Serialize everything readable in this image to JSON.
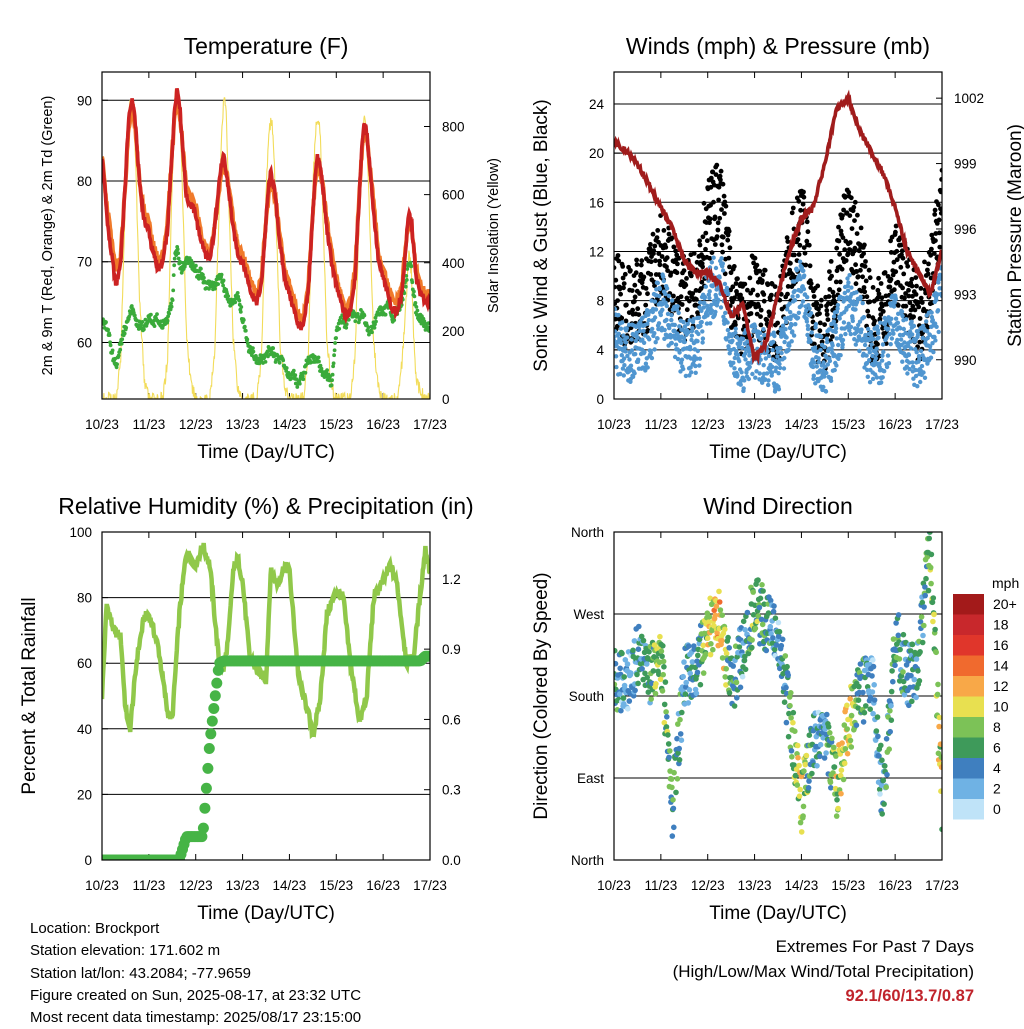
{
  "info": {
    "location": "Location: Brockport",
    "elevation": "Station elevation: 171.602 m",
    "latlon": "Station lat/lon: 43.2084; -77.9659",
    "created": "Figure created on Sun, 2025-08-17, at 23:32 UTC",
    "recent": "Most recent data timestamp: 2025/08/17 23:15:00"
  },
  "extremes": {
    "title": "Extremes For Past 7 Days",
    "subtitle": "(High/Low/Max Wind/Total Precipitation)",
    "values": "92.1/60/13.7/0.87"
  },
  "colors": {
    "temp_2m": "#cc2222",
    "temp_9m": "#f07a2a",
    "dewpoint": "#3aaa3a",
    "solar": "#f2dc5a",
    "wind": "#5096d0",
    "gust": "#000000",
    "pressure": "#a01c1c",
    "rh": "#90c84a",
    "rain": "#46b446"
  },
  "chart_data": [
    {
      "type": "line",
      "title": "Temperature (F)",
      "xlabel": "Time (Day/UTC)",
      "ylabel": "2m & 9m T (Red, Orange) & 2m Td (Green)",
      "y2label": "Solar Insolation (Yellow)",
      "xticks": [
        "10/23",
        "11/23",
        "12/23",
        "13/23",
        "14/23",
        "15/23",
        "16/23",
        "17/23"
      ],
      "yticks": [
        60,
        70,
        80,
        90
      ],
      "y2ticks": [
        0,
        200,
        400,
        600,
        800
      ],
      "ylim": [
        53,
        93.5
      ],
      "y2lim": [
        0,
        960
      ],
      "x": [
        0,
        0.05,
        0.1,
        0.15,
        0.2,
        0.3,
        0.4,
        0.5,
        0.55,
        0.6,
        0.65,
        0.7,
        0.8,
        0.9,
        1.0,
        1.05,
        1.1,
        1.15,
        1.2,
        1.3,
        1.4,
        1.5,
        1.55,
        1.6,
        1.65,
        1.7,
        1.8,
        1.9,
        2.0,
        2.05,
        2.1,
        2.15,
        2.2,
        2.3,
        2.4,
        2.5,
        2.55,
        2.6,
        2.65,
        2.7,
        2.8,
        2.9,
        3.0,
        3.05,
        3.1,
        3.15,
        3.2,
        3.3,
        3.4,
        3.5,
        3.55,
        3.6,
        3.65,
        3.7,
        3.8,
        3.9,
        4.0,
        4.05,
        4.1,
        4.15,
        4.2,
        4.3,
        4.4,
        4.5,
        4.55,
        4.6,
        4.65,
        4.7,
        4.8,
        4.9,
        5.0,
        5.05,
        5.1,
        5.15,
        5.2,
        5.3,
        5.4,
        5.5,
        5.55,
        5.6,
        5.65,
        5.7,
        5.8,
        5.9,
        6.0,
        6.05,
        6.1,
        6.15,
        6.2,
        6.3,
        6.4,
        6.5,
        6.55,
        6.6,
        6.65,
        6.7,
        6.8,
        6.9,
        7.0
      ],
      "series": [
        {
          "name": "2m T",
          "values": [
            83,
            80,
            76,
            73,
            71,
            67,
            70,
            80,
            86,
            89,
            90,
            88,
            80,
            75,
            74,
            72,
            71,
            70,
            69,
            70,
            74,
            84,
            89,
            91.5,
            90,
            86,
            78,
            77,
            76,
            74,
            73,
            72,
            71,
            70,
            74,
            80,
            82,
            83,
            81,
            79,
            74,
            71,
            70,
            69,
            68,
            67,
            66,
            65,
            67,
            75,
            79,
            81,
            80,
            78,
            72,
            68,
            66,
            65,
            64,
            63,
            62,
            62,
            66,
            76,
            81,
            83,
            82,
            80,
            74,
            70,
            67,
            66,
            65,
            64,
            63,
            64,
            68,
            79,
            85,
            87,
            86,
            83,
            76,
            70,
            68,
            67,
            66,
            65,
            64,
            64,
            66,
            73,
            76,
            75,
            72,
            68,
            66,
            65,
            65
          ]
        },
        {
          "name": "9m T",
          "values": [
            83,
            80,
            77,
            75,
            73,
            69,
            71,
            80,
            85,
            88,
            89,
            87,
            80,
            76,
            75,
            73,
            72,
            71,
            70,
            71,
            75,
            84,
            88,
            91,
            89,
            86,
            79,
            78,
            77,
            75,
            74,
            73,
            72,
            71,
            74,
            79,
            81,
            82,
            81,
            80,
            75,
            72,
            71,
            70,
            69,
            68,
            67,
            66,
            68,
            75,
            78,
            80,
            79,
            78,
            73,
            69,
            67,
            66,
            65,
            64,
            63,
            63,
            67,
            76,
            80,
            82,
            81,
            80,
            75,
            71,
            68,
            67,
            66,
            65,
            64,
            65,
            69,
            79,
            84,
            86,
            85,
            83,
            77,
            71,
            69,
            68,
            67,
            66,
            65,
            65,
            67,
            73,
            75,
            75,
            72,
            69,
            67,
            66,
            66
          ]
        },
        {
          "name": "2m Td",
          "values": [
            63,
            62,
            62,
            61,
            59,
            57,
            60,
            62,
            63,
            64,
            64,
            63,
            62,
            62,
            63,
            63,
            62,
            63,
            63,
            62,
            63,
            65,
            70,
            72,
            70,
            69,
            70,
            70,
            69,
            68,
            69,
            68,
            67,
            67,
            67,
            68,
            68,
            67,
            66,
            65,
            65,
            66,
            63,
            62,
            60,
            59,
            59,
            58,
            58,
            58,
            59,
            59,
            59,
            58,
            58,
            57,
            56,
            56,
            56,
            55,
            55,
            56,
            58,
            58,
            58,
            58,
            57,
            56,
            56,
            55,
            61,
            62,
            63,
            63,
            62,
            64,
            63,
            63,
            64,
            63,
            62,
            61,
            62,
            64,
            64,
            64,
            65,
            64,
            63,
            64,
            65,
            68,
            70,
            69,
            66,
            64,
            63,
            62,
            62
          ]
        },
        {
          "name": "Solar Insolation",
          "values": [
            0,
            0,
            0,
            0,
            0,
            0,
            120,
            600,
            800,
            880,
            860,
            780,
            300,
            60,
            0,
            0,
            0,
            0,
            0,
            0,
            120,
            650,
            830,
            900,
            880,
            700,
            200,
            40,
            0,
            0,
            0,
            0,
            0,
            0,
            120,
            560,
            760,
            880,
            860,
            600,
            180,
            30,
            0,
            0,
            0,
            0,
            0,
            0,
            110,
            600,
            750,
            820,
            790,
            600,
            170,
            30,
            0,
            0,
            0,
            0,
            0,
            0,
            120,
            620,
            770,
            830,
            800,
            600,
            170,
            30,
            0,
            0,
            0,
            0,
            0,
            0,
            120,
            600,
            760,
            820,
            780,
            580,
            160,
            30,
            0,
            0,
            0,
            0,
            0,
            0,
            100,
            300,
            420,
            380,
            180,
            60,
            20,
            0,
            0
          ]
        }
      ]
    },
    {
      "type": "scatter",
      "title": "Winds (mph) & Pressure (mb)",
      "xlabel": "Time (Day/UTC)",
      "ylabel": "Sonic Wind & Gust (Blue, Black)",
      "y2label": "Station Pressure (Maroon)",
      "xticks": [
        "10/23",
        "11/23",
        "12/23",
        "13/23",
        "14/23",
        "15/23",
        "16/23",
        "17/23"
      ],
      "yticks": [
        0,
        4,
        8,
        12,
        16,
        20,
        24
      ],
      "y2ticks": [
        990,
        993,
        996,
        999,
        1002
      ],
      "ylim": [
        0,
        26.6
      ],
      "y2lim": [
        988.2,
        1003.2
      ],
      "x": [
        0,
        0.25,
        0.5,
        0.75,
        1.0,
        1.25,
        1.5,
        1.75,
        2.0,
        2.25,
        2.5,
        2.75,
        3.0,
        3.25,
        3.5,
        3.75,
        4.0,
        4.25,
        4.5,
        4.75,
        5.0,
        5.25,
        5.5,
        5.75,
        6.0,
        6.25,
        6.5,
        6.75,
        7.0
      ],
      "series": [
        {
          "name": "Sonic Wind",
          "values": [
            5,
            3.5,
            4,
            5,
            8,
            6,
            4,
            4,
            8,
            10,
            5,
            3,
            4,
            3,
            3,
            6,
            10,
            4,
            2.5,
            5,
            8,
            6,
            3,
            4,
            7,
            4.5,
            3,
            5,
            9
          ]
        },
        {
          "name": "Gust",
          "values": [
            9,
            7,
            8,
            9,
            12,
            10,
            8,
            9,
            14,
            17,
            9,
            6,
            9,
            7,
            6,
            11,
            15,
            7,
            5,
            10,
            15,
            11,
            6,
            7,
            11,
            9,
            6,
            10,
            16
          ]
        },
        {
          "name": "Station Pressure",
          "values": [
            1000,
            999.6,
            999,
            998,
            997,
            996,
            994.5,
            994,
            994,
            993.5,
            992,
            992.5,
            990,
            990.8,
            993,
            995,
            996.5,
            997,
            999,
            1001.5,
            1002,
            1000.5,
            999.5,
            998.5,
            997,
            995,
            994,
            993,
            995
          ]
        }
      ]
    },
    {
      "type": "line",
      "title": "Relative Humidity (%) & Precipitation (in)",
      "xlabel": "Time (Day/UTC)",
      "ylabel": "Percent & Total Rainfall",
      "xticks": [
        "10/23",
        "11/23",
        "12/23",
        "13/23",
        "14/23",
        "15/23",
        "16/23",
        "17/23"
      ],
      "yticks": [
        0,
        20,
        40,
        60,
        80,
        100
      ],
      "y2ticks": [
        "0.0",
        "0.3",
        "0.6",
        "0.9",
        "1.2"
      ],
      "ylim": [
        0,
        100
      ],
      "y2lim": [
        0,
        1.4
      ],
      "x": [
        0,
        0.1,
        0.25,
        0.4,
        0.5,
        0.6,
        0.75,
        0.9,
        1.0,
        1.2,
        1.4,
        1.5,
        1.65,
        1.8,
        2.0,
        2.15,
        2.3,
        2.5,
        2.6,
        2.7,
        2.8,
        2.9,
        3.0,
        3.15,
        3.3,
        3.5,
        3.6,
        3.75,
        3.9,
        4.0,
        4.2,
        4.4,
        4.5,
        4.65,
        4.8,
        5.0,
        5.15,
        5.3,
        5.5,
        5.65,
        5.8,
        6.0,
        6.15,
        6.3,
        6.5,
        6.65,
        6.8,
        6.9,
        7.0
      ],
      "series": [
        {
          "name": "Relative Humidity",
          "values": [
            50,
            78,
            70,
            68,
            46,
            40,
            62,
            74,
            75,
            65,
            45,
            43,
            75,
            94,
            90,
            96,
            90,
            60,
            58,
            68,
            88,
            92,
            85,
            62,
            58,
            55,
            88,
            84,
            90,
            88,
            55,
            45,
            38,
            48,
            75,
            82,
            80,
            60,
            42,
            50,
            80,
            85,
            90,
            84,
            60,
            62,
            82,
            95,
            88
          ]
        },
        {
          "name": "Total Rainfall",
          "values": [
            0,
            0,
            0,
            0,
            0,
            0,
            0,
            0,
            0,
            0,
            0,
            0,
            0,
            0.1,
            0.1,
            0.1,
            0.5,
            0.84,
            0.85,
            0.85,
            0.85,
            0.85,
            0.85,
            0.85,
            0.85,
            0.85,
            0.85,
            0.85,
            0.85,
            0.85,
            0.85,
            0.85,
            0.85,
            0.85,
            0.85,
            0.85,
            0.85,
            0.85,
            0.85,
            0.85,
            0.85,
            0.85,
            0.85,
            0.85,
            0.85,
            0.85,
            0.85,
            0.87,
            0.87
          ]
        }
      ]
    },
    {
      "type": "scatter",
      "title": "Wind Direction",
      "xlabel": "Time (Day/UTC)",
      "ylabel": "Direction (Colored By Speed)",
      "xticks": [
        "10/23",
        "11/23",
        "12/23",
        "13/23",
        "14/23",
        "15/23",
        "16/23",
        "17/23"
      ],
      "yticks": [
        "North",
        "East",
        "South",
        "West",
        "North"
      ],
      "ylim": [
        0,
        360
      ],
      "legend_title": "mph",
      "legend_labels": [
        "20+",
        "18",
        "16",
        "14",
        "12",
        "10",
        "8",
        "6",
        "4",
        "2",
        "0"
      ],
      "legend_colors": [
        "#a31a1a",
        "#c8282c",
        "#e0362b",
        "#f06a2e",
        "#f8a848",
        "#e8e050",
        "#7cc257",
        "#3e9a5a",
        "#3f7fbf",
        "#6fb2e4",
        "#bfe3f8"
      ],
      "x": [
        0,
        0.25,
        0.5,
        0.75,
        1.0,
        1.25,
        1.5,
        1.75,
        2.0,
        2.25,
        2.5,
        2.75,
        3.0,
        3.25,
        3.5,
        3.75,
        4.0,
        4.25,
        4.5,
        4.75,
        5.0,
        5.25,
        5.5,
        5.75,
        6.0,
        6.25,
        6.5,
        6.75,
        7.0
      ],
      "series": [
        {
          "name": "Direction",
          "values": [
            200,
            190,
            225,
            200,
            230,
            55,
            200,
            210,
            250,
            270,
            190,
            230,
            280,
            260,
            250,
            160,
            60,
            130,
            140,
            80,
            150,
            180,
            200,
            60,
            250,
            200,
            215,
            350,
            60
          ]
        },
        {
          "name": "Speed",
          "values": [
            5,
            3,
            4,
            5,
            8,
            6,
            4,
            4,
            9,
            11,
            5,
            3,
            8,
            5,
            3,
            6,
            10,
            4,
            3,
            9,
            10,
            6,
            3,
            4,
            6,
            4,
            4,
            7,
            9
          ]
        }
      ]
    }
  ]
}
